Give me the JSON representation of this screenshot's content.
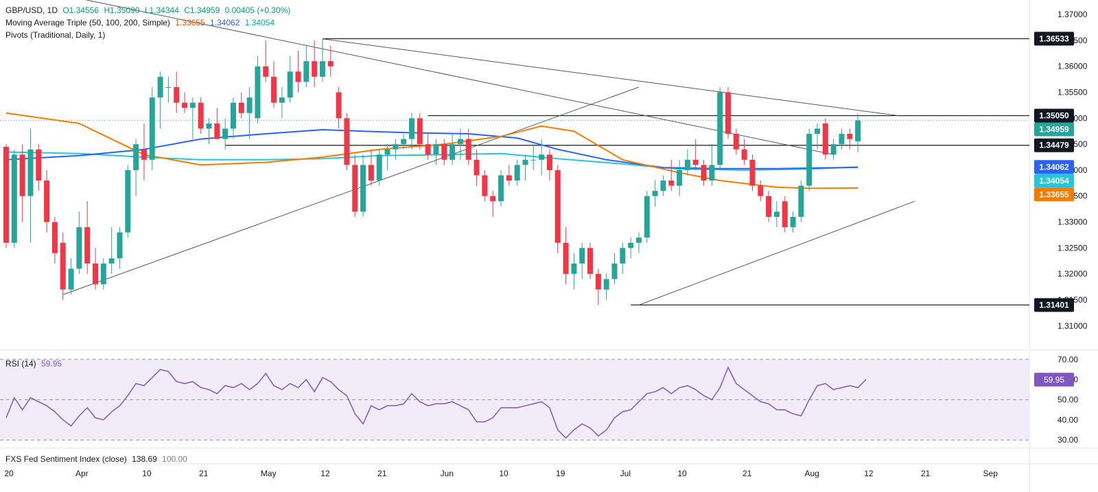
{
  "legend": {
    "symbol": "GBP/USD, 1D",
    "open": "O1.34556",
    "high": "H1.35090",
    "low": "L1.34344",
    "close": "C1.34959",
    "change": "0.00405 (+0.30%)",
    "ma_title": "Moving Average Triple (50, 100, 200, Simple)",
    "ma_vals": [
      "1.33655",
      "1.34062",
      "1.34054"
    ],
    "pivots_title": "Pivots (Traditional, Daily, 1)",
    "rsi_title": "RSI (14)",
    "rsi_val": "59.95",
    "fxs_title": "FXS Fed Sentiment Index (close)",
    "fxs_vals": [
      "138.69",
      "100.00"
    ]
  },
  "colors": {
    "up": "#26a69a",
    "down": "#f23645",
    "ma50": "#f57c00",
    "ma100": "#26c6da",
    "ma200": "#2962ff",
    "rsi": "#7e57c2",
    "rsi_band": "#ede7f6",
    "line": "#131722"
  },
  "chart_data": [
    {
      "type": "candlestick",
      "x_ticks": [
        {
          "label": "20",
          "idx": 0
        },
        {
          "label": "Apr",
          "idx": 9
        },
        {
          "label": "10",
          "idx": 17
        },
        {
          "label": "21",
          "idx": 24
        },
        {
          "label": "May",
          "idx": 32
        },
        {
          "label": "12",
          "idx": 39
        },
        {
          "label": "21",
          "idx": 46
        },
        {
          "label": "Jun",
          "idx": 54
        },
        {
          "label": "10",
          "idx": 61
        },
        {
          "label": "19",
          "idx": 68
        },
        {
          "label": "Jul",
          "idx": 76
        },
        {
          "label": "10",
          "idx": 83
        },
        {
          "label": "21",
          "idx": 91
        },
        {
          "label": "Aug",
          "idx": 99
        },
        {
          "label": "12",
          "idx": 106
        },
        {
          "label": "21",
          "idx": 113
        },
        {
          "label": "Sep",
          "idx": 121
        }
      ],
      "y_ticks": [
        "1.31000",
        "1.31500",
        "1.32000",
        "1.32500",
        "1.33000",
        "1.33500",
        "1.34000",
        "1.34500",
        "1.35000",
        "1.35500",
        "1.36000",
        "1.36500",
        "1.37000"
      ],
      "ylim": [
        1.306,
        1.372
      ],
      "price_labels": [
        {
          "text": "1.36533",
          "value": 1.36533,
          "style": "dark"
        },
        {
          "text": "1.35050",
          "value": 1.3505,
          "style": "dark"
        },
        {
          "text": "1.34959",
          "value": 1.34959,
          "style": "green"
        },
        {
          "text": "1.34479",
          "value": 1.34479,
          "style": "dark"
        },
        {
          "text": "1.34062",
          "value": 1.34062,
          "style": "blue"
        },
        {
          "text": "1.34054",
          "value": 1.34054,
          "style": "teal"
        },
        {
          "text": "1.33655",
          "value": 1.33655,
          "style": "orange"
        },
        {
          "text": "1.31401",
          "value": 1.31401,
          "style": "dark"
        }
      ],
      "candles": [
        [
          1.3445,
          1.345,
          1.325,
          1.326
        ],
        [
          1.326,
          1.344,
          1.325,
          1.343
        ],
        [
          1.343,
          1.345,
          1.33,
          1.335
        ],
        [
          1.335,
          1.348,
          1.326,
          1.344
        ],
        [
          1.344,
          1.345,
          1.336,
          1.338
        ],
        [
          1.338,
          1.34,
          1.328,
          1.33
        ],
        [
          1.33,
          1.331,
          1.322,
          1.324
        ],
        [
          1.326,
          1.328,
          1.315,
          1.317
        ],
        [
          1.317,
          1.323,
          1.316,
          1.321
        ],
        [
          1.321,
          1.332,
          1.32,
          1.329
        ],
        [
          1.329,
          1.334,
          1.32,
          1.322
        ],
        [
          1.322,
          1.325,
          1.317,
          1.318
        ],
        [
          1.318,
          1.323,
          1.317,
          1.322
        ],
        [
          1.322,
          1.329,
          1.32,
          1.323
        ],
        [
          1.323,
          1.329,
          1.321,
          1.328
        ],
        [
          1.328,
          1.341,
          1.327,
          1.34
        ],
        [
          1.34,
          1.346,
          1.335,
          1.345
        ],
        [
          1.344,
          1.349,
          1.338,
          1.342
        ],
        [
          1.342,
          1.356,
          1.34,
          1.354
        ],
        [
          1.354,
          1.359,
          1.348,
          1.358
        ],
        [
          1.356,
          1.358,
          1.353,
          1.356
        ],
        [
          1.356,
          1.359,
          1.351,
          1.353
        ],
        [
          1.353,
          1.355,
          1.351,
          1.352
        ],
        [
          1.352,
          1.354,
          1.346,
          1.353
        ],
        [
          1.353,
          1.354,
          1.347,
          1.348
        ],
        [
          1.348,
          1.35,
          1.345,
          1.349
        ],
        [
          1.349,
          1.352,
          1.346,
          1.346
        ],
        [
          1.346,
          1.35,
          1.344,
          1.348
        ],
        [
          1.348,
          1.354,
          1.346,
          1.353
        ],
        [
          1.353,
          1.355,
          1.35,
          1.351
        ],
        [
          1.351,
          1.356,
          1.346,
          1.354
        ],
        [
          1.35,
          1.362,
          1.349,
          1.36
        ],
        [
          1.36,
          1.365,
          1.357,
          1.358
        ],
        [
          1.358,
          1.361,
          1.352,
          1.353
        ],
        [
          1.353,
          1.356,
          1.35,
          1.354
        ],
        [
          1.354,
          1.362,
          1.353,
          1.359
        ],
        [
          1.359,
          1.363,
          1.355,
          1.357
        ],
        [
          1.357,
          1.364,
          1.356,
          1.361
        ],
        [
          1.361,
          1.365,
          1.356,
          1.358
        ],
        [
          1.358,
          1.3653,
          1.357,
          1.361
        ],
        [
          1.361,
          1.364,
          1.358,
          1.36
        ],
        [
          1.355,
          1.356,
          1.348,
          1.35
        ],
        [
          1.35,
          1.351,
          1.34,
          1.341
        ],
        [
          1.341,
          1.343,
          1.331,
          1.332
        ],
        [
          1.332,
          1.343,
          1.331,
          1.341
        ],
        [
          1.341,
          1.344,
          1.337,
          1.338
        ],
        [
          1.338,
          1.344,
          1.337,
          1.343
        ],
        [
          1.343,
          1.345,
          1.34,
          1.344
        ],
        [
          1.344,
          1.346,
          1.342,
          1.345
        ],
        [
          1.345,
          1.347,
          1.344,
          1.346
        ],
        [
          1.346,
          1.351,
          1.344,
          1.35
        ],
        [
          1.35,
          1.351,
          1.344,
          1.345
        ],
        [
          1.345,
          1.347,
          1.342,
          1.343
        ],
        [
          1.343,
          1.346,
          1.341,
          1.345
        ],
        [
          1.345,
          1.346,
          1.341,
          1.342
        ],
        [
          1.342,
          1.347,
          1.341,
          1.345
        ],
        [
          1.345,
          1.348,
          1.342,
          1.346
        ],
        [
          1.346,
          1.348,
          1.341,
          1.342
        ],
        [
          1.342,
          1.344,
          1.337,
          1.339
        ],
        [
          1.339,
          1.34,
          1.334,
          1.335
        ],
        [
          1.335,
          1.336,
          1.331,
          1.334
        ],
        [
          1.334,
          1.34,
          1.333,
          1.339
        ],
        [
          1.339,
          1.341,
          1.337,
          1.338
        ],
        [
          1.338,
          1.342,
          1.337,
          1.341
        ],
        [
          1.341,
          1.343,
          1.338,
          1.342
        ],
        [
          1.342,
          1.345,
          1.34,
          1.342
        ],
        [
          1.342,
          1.346,
          1.339,
          1.343
        ],
        [
          1.343,
          1.344,
          1.338,
          1.34
        ],
        [
          1.34,
          1.341,
          1.324,
          1.326
        ],
        [
          1.326,
          1.329,
          1.318,
          1.32
        ],
        [
          1.32,
          1.324,
          1.317,
          1.322
        ],
        [
          1.322,
          1.326,
          1.319,
          1.325
        ],
        [
          1.325,
          1.326,
          1.319,
          1.32
        ],
        [
          1.32,
          1.321,
          1.314,
          1.317
        ],
        [
          1.317,
          1.32,
          1.315,
          1.319
        ],
        [
          1.319,
          1.324,
          1.318,
          1.322
        ],
        [
          1.322,
          1.326,
          1.32,
          1.325
        ],
        [
          1.325,
          1.327,
          1.323,
          1.326
        ],
        [
          1.326,
          1.328,
          1.324,
          1.327
        ],
        [
          1.327,
          1.336,
          1.326,
          1.335
        ],
        [
          1.335,
          1.338,
          1.333,
          1.336
        ],
        [
          1.336,
          1.339,
          1.335,
          1.338
        ],
        [
          1.338,
          1.342,
          1.336,
          1.337
        ],
        [
          1.337,
          1.342,
          1.335,
          1.34
        ],
        [
          1.34,
          1.344,
          1.339,
          1.342
        ],
        [
          1.342,
          1.346,
          1.34,
          1.341
        ],
        [
          1.341,
          1.342,
          1.337,
          1.338
        ],
        [
          1.338,
          1.345,
          1.337,
          1.341
        ],
        [
          1.341,
          1.356,
          1.34,
          1.355
        ],
        [
          1.355,
          1.356,
          1.346,
          1.347
        ],
        [
          1.347,
          1.348,
          1.343,
          1.344
        ],
        [
          1.344,
          1.346,
          1.341,
          1.342
        ],
        [
          1.342,
          1.343,
          1.336,
          1.337
        ],
        [
          1.337,
          1.338,
          1.334,
          1.335
        ],
        [
          1.335,
          1.336,
          1.33,
          1.331
        ],
        [
          1.331,
          1.334,
          1.329,
          1.332
        ],
        [
          1.334,
          1.335,
          1.328,
          1.329
        ],
        [
          1.329,
          1.332,
          1.328,
          1.331
        ],
        [
          1.331,
          1.338,
          1.33,
          1.337
        ],
        [
          1.337,
          1.348,
          1.336,
          1.347
        ],
        [
          1.347,
          1.349,
          1.344,
          1.348
        ],
        [
          1.349,
          1.35,
          1.342,
          1.343
        ],
        [
          1.343,
          1.346,
          1.342,
          1.345
        ],
        [
          1.345,
          1.348,
          1.344,
          1.347
        ],
        [
          1.347,
          1.348,
          1.344,
          1.346
        ],
        [
          1.34556,
          1.3509,
          1.34344,
          1.34959
        ]
      ],
      "ma50": [
        [
          0,
          1.351
        ],
        [
          9,
          1.349
        ],
        [
          17,
          1.343
        ],
        [
          24,
          1.341
        ],
        [
          32,
          1.3415
        ],
        [
          39,
          1.3425
        ],
        [
          46,
          1.344
        ],
        [
          54,
          1.345
        ],
        [
          61,
          1.3465
        ],
        [
          66,
          1.3485
        ],
        [
          70,
          1.3475
        ],
        [
          76,
          1.342
        ],
        [
          83,
          1.3395
        ],
        [
          88,
          1.338
        ],
        [
          95,
          1.3367
        ],
        [
          99,
          1.3365
        ],
        [
          105,
          1.33655
        ]
      ],
      "ma100": [
        [
          0,
          1.3435
        ],
        [
          9,
          1.3432
        ],
        [
          17,
          1.3425
        ],
        [
          24,
          1.342
        ],
        [
          32,
          1.342
        ],
        [
          39,
          1.3422
        ],
        [
          46,
          1.3428
        ],
        [
          54,
          1.343
        ],
        [
          61,
          1.3432
        ],
        [
          68,
          1.3422
        ],
        [
          76,
          1.3412
        ],
        [
          83,
          1.3402
        ],
        [
          91,
          1.34
        ],
        [
          99,
          1.3402
        ],
        [
          105,
          1.34062
        ]
      ],
      "ma200": [
        [
          0,
          1.342
        ],
        [
          9,
          1.3428
        ],
        [
          17,
          1.344
        ],
        [
          24,
          1.346
        ],
        [
          32,
          1.347
        ],
        [
          39,
          1.3478
        ],
        [
          44,
          1.3475
        ],
        [
          50,
          1.3472
        ],
        [
          57,
          1.347
        ],
        [
          63,
          1.3462
        ],
        [
          68,
          1.344
        ],
        [
          74,
          1.342
        ],
        [
          81,
          1.3405
        ],
        [
          88,
          1.3403
        ],
        [
          95,
          1.3403
        ],
        [
          105,
          1.34054
        ]
      ],
      "trendlines": [
        {
          "from": [
            7,
            1.316
          ],
          "to": [
            78,
            1.356
          ]
        },
        {
          "from": [
            78,
            1.314
          ],
          "to": [
            112,
            1.334
          ]
        },
        {
          "from": [
            0,
            1.376
          ],
          "to": [
            102,
            1.343
          ]
        },
        {
          "from": [
            39,
            1.3653
          ],
          "to": [
            110,
            1.3505
          ]
        }
      ],
      "levels": [
        {
          "value": 1.36533,
          "from": 39
        },
        {
          "value": 1.3505,
          "from": 52
        },
        {
          "value": 1.34479,
          "from": 27
        },
        {
          "value": 1.31401,
          "from": 77
        }
      ]
    },
    {
      "type": "line",
      "name": "RSI (14)",
      "y_ticks": [
        "30.00",
        "40.00",
        "50.00",
        "60.00",
        "70.00"
      ],
      "ylim": [
        27,
        73
      ],
      "band": [
        30,
        70
      ],
      "midline": 50,
      "last_label": "59.95",
      "values": [
        41,
        51,
        45,
        51,
        49,
        47,
        44,
        40,
        37,
        42,
        46,
        41,
        40,
        44,
        47,
        52,
        58,
        57,
        61,
        65,
        64,
        59,
        58,
        59,
        56,
        55,
        53,
        57,
        56,
        58,
        55,
        58,
        63,
        57,
        55,
        58,
        56,
        60,
        54,
        61,
        59,
        55,
        52,
        43,
        38,
        47,
        45,
        47,
        47,
        48,
        53,
        49,
        47,
        48,
        48,
        49,
        47,
        45,
        39,
        39,
        41,
        46,
        46,
        46,
        47,
        48,
        49,
        46,
        35,
        31,
        35,
        38,
        36,
        32,
        35,
        41,
        44,
        45,
        49,
        53,
        54,
        56,
        53,
        56,
        57,
        55,
        52,
        50,
        56,
        66,
        58,
        55,
        52,
        49,
        48,
        45,
        45,
        43,
        42,
        50,
        57,
        58,
        55,
        56,
        57,
        56,
        59.95
      ]
    }
  ]
}
